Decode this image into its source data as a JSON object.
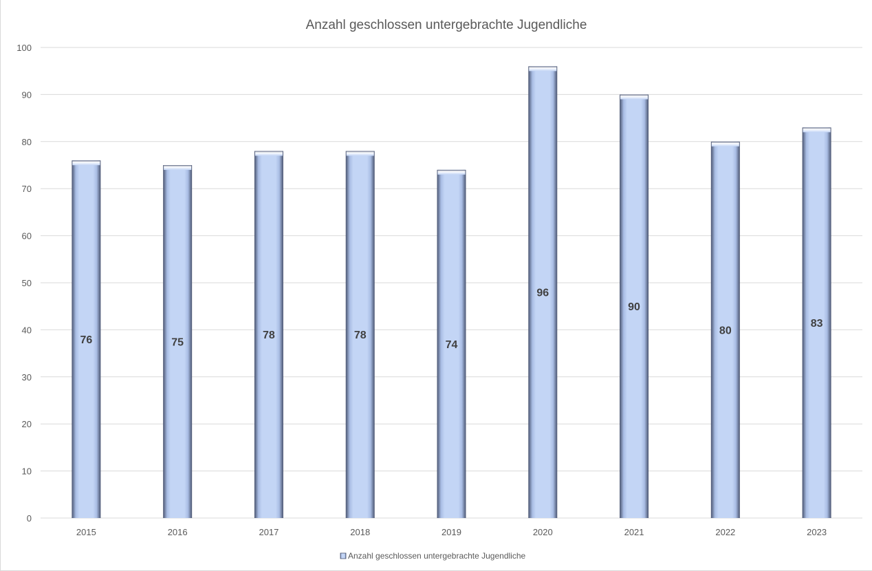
{
  "chart_data": {
    "type": "bar",
    "title": "Anzahl geschlossen untergebrachte Jugendliche",
    "xlabel": "",
    "ylabel": "",
    "categories": [
      "2015",
      "2016",
      "2017",
      "2018",
      "2019",
      "2020",
      "2021",
      "2022",
      "2023"
    ],
    "series": [
      {
        "name": "Anzahl geschlossen untergebrachte Jugendliche",
        "values": [
          76,
          75,
          78,
          78,
          74,
          96,
          90,
          80,
          83
        ]
      }
    ],
    "ylim": [
      0,
      100
    ],
    "yticks": [
      0,
      10,
      20,
      30,
      40,
      50,
      60,
      70,
      80,
      90,
      100
    ],
    "grid": true,
    "legend_position": "bottom",
    "data_labels": true,
    "bar_color": "#c1d3f3"
  }
}
